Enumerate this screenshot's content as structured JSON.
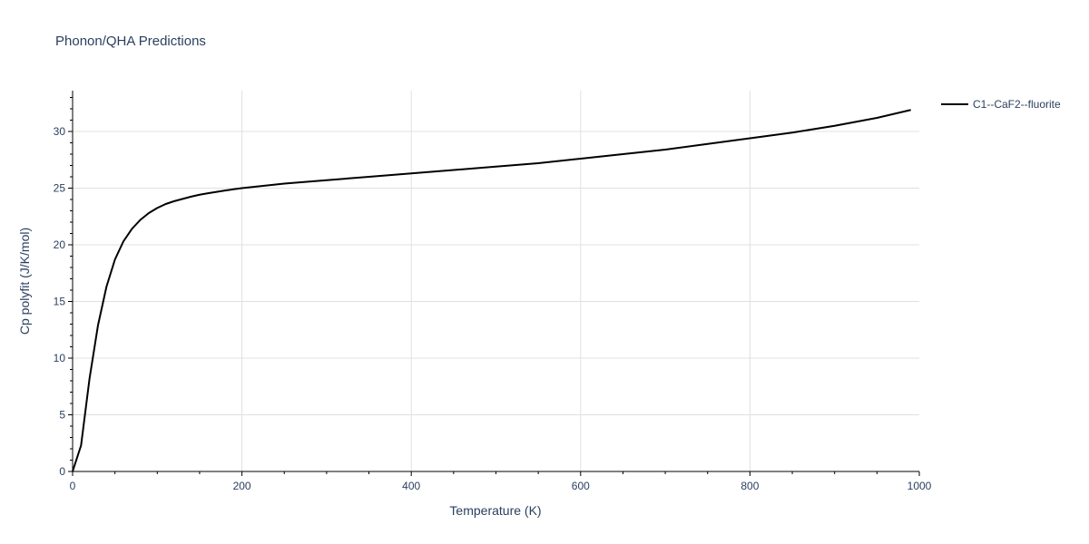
{
  "chart_data": {
    "type": "line",
    "title": "Phonon/QHA Predictions",
    "xlabel": "Temperature (K)",
    "ylabel": "Cp polyfit (J/K/mol)",
    "xlim": [
      0,
      1000
    ],
    "ylim": [
      0,
      33.6
    ],
    "x_ticks": [
      0,
      200,
      400,
      600,
      800,
      1000
    ],
    "x_tick_labels": [
      "0",
      "200",
      "400",
      "600",
      "800",
      "1000"
    ],
    "y_ticks": [
      0,
      5,
      10,
      15,
      20,
      25,
      30
    ],
    "y_tick_labels": [
      "0",
      "5",
      "10",
      "15",
      "20",
      "25",
      "30"
    ],
    "x_minor_step": 50,
    "y_minor_step": 1,
    "grid": true,
    "legend_position": "top-right",
    "series": [
      {
        "name": "C1--CaF2--fluorite",
        "color": "#000000",
        "x": [
          0,
          10,
          20,
          30,
          40,
          50,
          60,
          70,
          80,
          90,
          100,
          110,
          120,
          130,
          140,
          150,
          160,
          170,
          180,
          190,
          200,
          250,
          300,
          350,
          400,
          450,
          500,
          550,
          600,
          650,
          700,
          750,
          800,
          850,
          900,
          950,
          990
        ],
        "y": [
          0,
          2.3,
          8.2,
          12.9,
          16.3,
          18.7,
          20.3,
          21.4,
          22.2,
          22.8,
          23.25,
          23.6,
          23.85,
          24.05,
          24.25,
          24.42,
          24.55,
          24.67,
          24.79,
          24.9,
          25.0,
          25.4,
          25.7,
          26.0,
          26.3,
          26.6,
          26.9,
          27.2,
          27.6,
          28.0,
          28.4,
          28.9,
          29.4,
          29.9,
          30.5,
          31.2,
          31.9
        ]
      }
    ]
  }
}
